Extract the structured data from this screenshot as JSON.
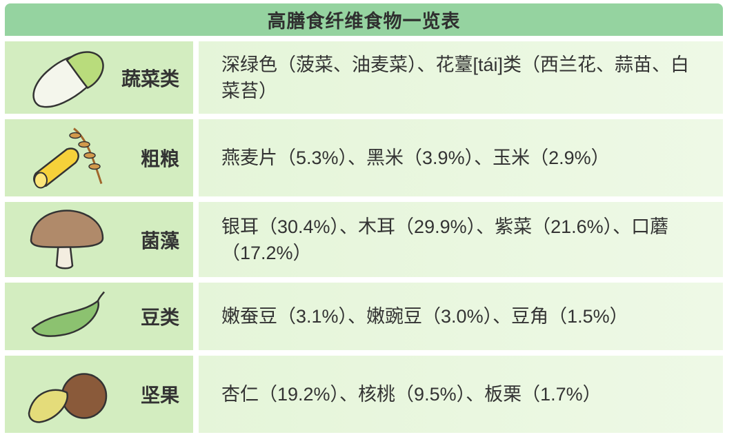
{
  "title": "高膳食纤维食物一览表",
  "rows": [
    {
      "category": "蔬菜类",
      "icon": "cabbage-icon",
      "foods": "深绿色（菠菜、油麦菜）、花薹[tái]类（西兰花、蒜苗、白菜苔）"
    },
    {
      "category": "粗粮",
      "icon": "corn-wheat-icon",
      "foods": "燕麦片（5.3%）、黑米（3.9%）、玉米（2.9%）"
    },
    {
      "category": "菌藻",
      "icon": "mushroom-icon",
      "foods": "银耳（30.4%）、木耳（29.9%）、紫菜（21.6%）、口蘑（17.2%）"
    },
    {
      "category": "豆类",
      "icon": "pea-pod-icon",
      "foods": "嫩蚕豆（3.1%）、嫩豌豆（3.0%）、豆角（1.5%）"
    },
    {
      "category": "坚果",
      "icon": "nuts-icon",
      "foods": "杏仁（19.2%）、核桃（9.5%）、板栗（1.7%）"
    }
  ],
  "colors": {
    "header": "#95d3a0",
    "category_cell": "#d3edc0",
    "content_cell": "#e9f7df"
  }
}
